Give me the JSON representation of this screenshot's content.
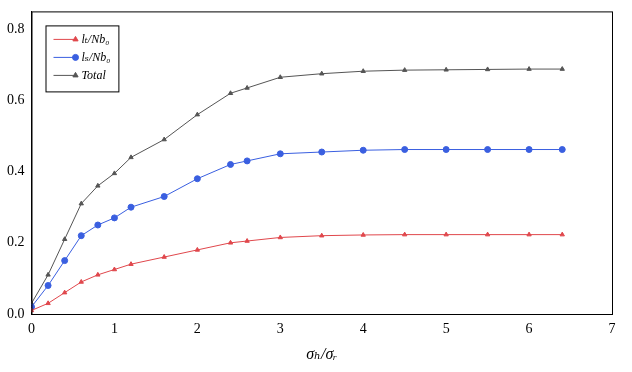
{
  "chart_data": {
    "type": "line",
    "x_label": "σₕ/σᵣ",
    "x": [
      0,
      0.2,
      0.4,
      0.6,
      0.8,
      1.0,
      1.2,
      1.6,
      2.0,
      2.4,
      2.6,
      3.0,
      3.5,
      4.0,
      4.5,
      5.0,
      5.5,
      6.0,
      6.4
    ],
    "series": [
      {
        "name": "lₜ/Nb₀",
        "color": "#e0474c",
        "marker": "triangle",
        "values": [
          0.01,
          0.03,
          0.06,
          0.09,
          0.11,
          0.125,
          0.14,
          0.16,
          0.18,
          0.2,
          0.205,
          0.215,
          0.22,
          0.222,
          0.223,
          0.223,
          0.223,
          0.223,
          0.223
        ]
      },
      {
        "name": "lₛ/Nb₀",
        "color": "#3a5fe0",
        "marker": "circle",
        "values": [
          0.02,
          0.08,
          0.15,
          0.22,
          0.25,
          0.27,
          0.3,
          0.33,
          0.38,
          0.42,
          0.43,
          0.45,
          0.455,
          0.46,
          0.462,
          0.462,
          0.462,
          0.462,
          0.462
        ]
      },
      {
        "name": "Total",
        "color": "#555555",
        "marker": "triangle",
        "values": [
          0.03,
          0.11,
          0.21,
          0.31,
          0.36,
          0.395,
          0.44,
          0.49,
          0.56,
          0.62,
          0.635,
          0.665,
          0.675,
          0.682,
          0.685,
          0.686,
          0.687,
          0.688,
          0.688
        ]
      }
    ],
    "xlim": [
      0,
      7
    ],
    "xticks": [
      0,
      1,
      2,
      3,
      4,
      5,
      6,
      7
    ],
    "ylim": [
      0,
      0.85
    ],
    "yticks": [
      {
        "value": 0,
        "label": "0.0"
      },
      {
        "value": 0.2,
        "label": "0.2"
      },
      {
        "value": 0.4,
        "label": "0.4"
      },
      {
        "value": 0.6,
        "label": "0.6"
      },
      {
        "value": 0.8,
        "label": "0.8"
      }
    ],
    "grid": false,
    "legend": "upper left"
  }
}
